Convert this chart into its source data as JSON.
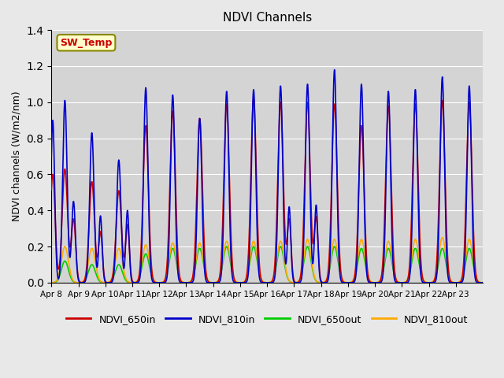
{
  "title": "NDVI Channels",
  "ylabel": "NDVI channels (W/m2/nm)",
  "ylim": [
    0,
    1.4
  ],
  "background_color": "#e8e8e8",
  "plot_bg_color": "#d4d4d4",
  "grid_color": "#ffffff",
  "legend_labels": [
    "NDVI_650in",
    "NDVI_810in",
    "NDVI_650out",
    "NDVI_810out"
  ],
  "legend_colors": [
    "#cc0000",
    "#0000cc",
    "#00cc00",
    "#ffaa00"
  ],
  "sw_temp_label": "SW_Temp",
  "sw_temp_color": "#cc0000",
  "sw_temp_bg": "#ffffcc",
  "sw_temp_border": "#888800",
  "x_tick_labels": [
    "Apr 8",
    "Apr 9",
    "Apr 10",
    "Apr 11",
    "Apr 12",
    "Apr 13",
    "Apr 14",
    "Apr 15",
    "Apr 16",
    "Apr 17",
    "Apr 18",
    "Apr 19",
    "Apr 20",
    "Apr 21",
    "Apr 22",
    "Apr 23"
  ],
  "num_days": 16,
  "day_peaks_810in": [
    1.01,
    0.83,
    0.68,
    1.08,
    1.04,
    0.91,
    1.06,
    1.07,
    1.09,
    1.1,
    1.18,
    1.1,
    1.06,
    1.07,
    1.14,
    1.09
  ],
  "day_peaks_650in": [
    0.63,
    0.56,
    0.51,
    0.87,
    0.95,
    0.91,
    0.99,
    1.02,
    1.0,
    1.0,
    0.99,
    0.87,
    0.98,
    0.99,
    1.01,
    1.0
  ],
  "day_peaks_650out": [
    0.12,
    0.1,
    0.1,
    0.16,
    0.19,
    0.19,
    0.2,
    0.2,
    0.2,
    0.2,
    0.2,
    0.19,
    0.19,
    0.19,
    0.19,
    0.19
  ],
  "day_peaks_810out": [
    0.2,
    0.19,
    0.19,
    0.21,
    0.22,
    0.22,
    0.23,
    0.23,
    0.23,
    0.24,
    0.24,
    0.24,
    0.23,
    0.24,
    0.25,
    0.24
  ],
  "points_per_day": 200
}
